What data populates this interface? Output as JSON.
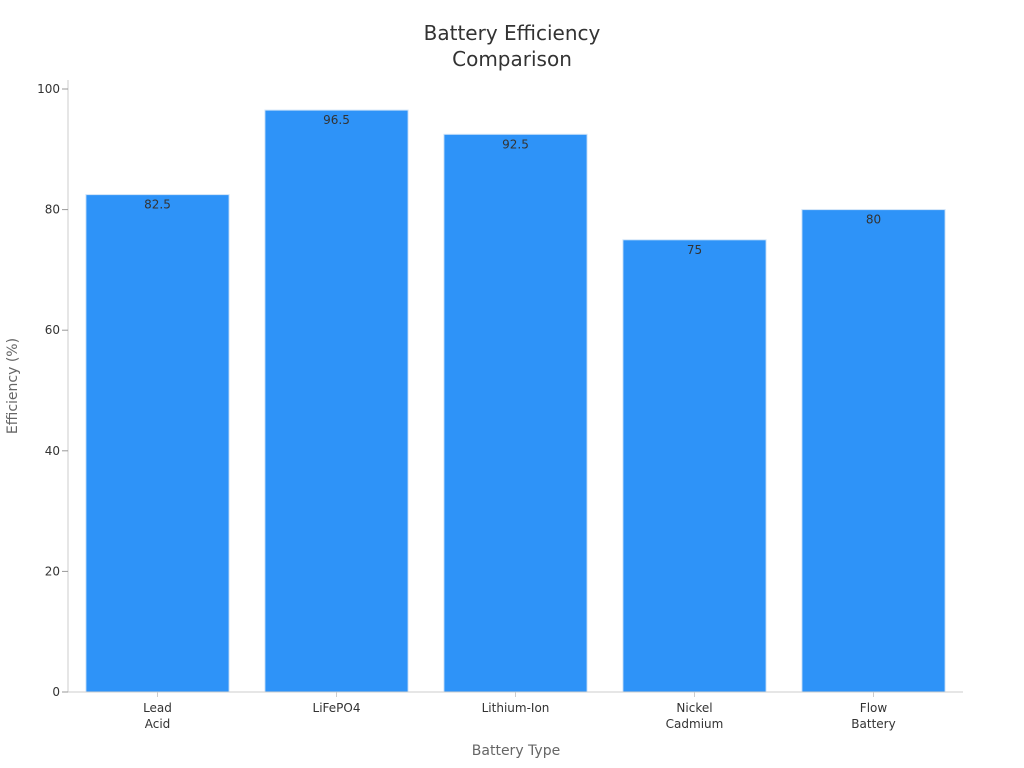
{
  "chart_data": {
    "type": "bar",
    "title_lines": [
      "Battery Efficiency",
      "Comparison"
    ],
    "xlabel": "Battery Type",
    "ylabel": "Efficiency (%)",
    "categories": [
      [
        "Lead",
        "Acid"
      ],
      [
        "LiFePO4"
      ],
      [
        "Lithium-Ion"
      ],
      [
        "Nickel",
        "Cadmium"
      ],
      [
        "Flow",
        "Battery"
      ]
    ],
    "values": [
      82.5,
      96.5,
      92.5,
      75,
      80
    ],
    "value_labels": [
      "82.5",
      "96.5",
      "92.5",
      "75",
      "80"
    ],
    "yticks": [
      0,
      20,
      40,
      60,
      80,
      100
    ],
    "ytick_labels": [
      "0",
      "20",
      "40",
      "60",
      "80",
      "100"
    ],
    "ylim": [
      0,
      101.5
    ],
    "grid": false,
    "legend": "none",
    "bar_color": "#2e93f8",
    "bar_edge_color": "#d0e4f8"
  }
}
